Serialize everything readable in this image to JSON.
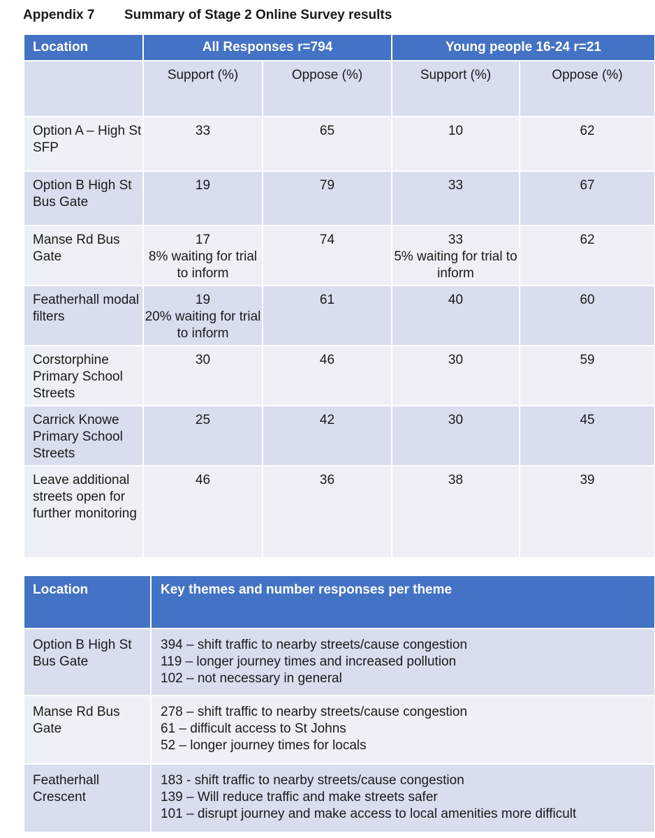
{
  "heading": {
    "label": "Appendix 7",
    "title": "Summary of Stage 2 Online Survey results"
  },
  "table1": {
    "header": {
      "location": "Location",
      "all": "All Responses r=794",
      "young": "Young people 16-24 r=21"
    },
    "subheader": {
      "support": "Support (%)",
      "oppose": "Oppose (%)"
    },
    "rows": [
      {
        "location": "Option A – High St SFP",
        "all_support": "33",
        "all_support_note": "",
        "all_oppose": "65",
        "young_support": "10",
        "young_support_note": "",
        "young_oppose": "62"
      },
      {
        "location": "Option B High St Bus Gate",
        "all_support": "19",
        "all_support_note": "",
        "all_oppose": "79",
        "young_support": "33",
        "young_support_note": "",
        "young_oppose": "67"
      },
      {
        "location": "Manse Rd Bus Gate",
        "all_support": "17",
        "all_support_note": "8% waiting for trial to inform",
        "all_oppose": "74",
        "young_support": "33",
        "young_support_note": "5% waiting for trial to inform",
        "young_oppose": "62"
      },
      {
        "location": "Featherhall modal filters",
        "all_support": "19",
        "all_support_note": "20% waiting for trial to inform",
        "all_oppose": "61",
        "young_support": "40",
        "young_support_note": "",
        "young_oppose": "60"
      },
      {
        "location": "Corstorphine Primary School Streets",
        "all_support": "30",
        "all_support_note": "",
        "all_oppose": "46",
        "young_support": "30",
        "young_support_note": "",
        "young_oppose": "59"
      },
      {
        "location": "Carrick Knowe Primary School Streets",
        "all_support": "25",
        "all_support_note": "",
        "all_oppose": "42",
        "young_support": "30",
        "young_support_note": "",
        "young_oppose": "45"
      },
      {
        "location": "Leave additional streets open for further monitoring",
        "all_support": "46",
        "all_support_note": "",
        "all_oppose": "36",
        "young_support": "38",
        "young_support_note": "",
        "young_oppose": "39"
      }
    ]
  },
  "table2": {
    "header": {
      "location": "Location",
      "themes": "Key themes and number responses per theme"
    },
    "rows": [
      {
        "location": "Option B High St Bus Gate",
        "themes": [
          "394 – shift traffic to nearby streets/cause congestion",
          "119 – longer journey times and increased pollution",
          "102 – not necessary in general"
        ]
      },
      {
        "location": "Manse Rd Bus Gate",
        "themes": [
          "278 – shift traffic to nearby streets/cause congestion",
          "61   – difficult access to St Johns",
          "52   – longer journey times for locals"
        ]
      },
      {
        "location": "Featherhall Crescent",
        "themes": [
          "183 - shift traffic to nearby streets/cause congestion",
          "139 – Will reduce traffic and make streets safer",
          "101 – disrupt journey and make access to local amenities more difficult"
        ]
      }
    ]
  }
}
